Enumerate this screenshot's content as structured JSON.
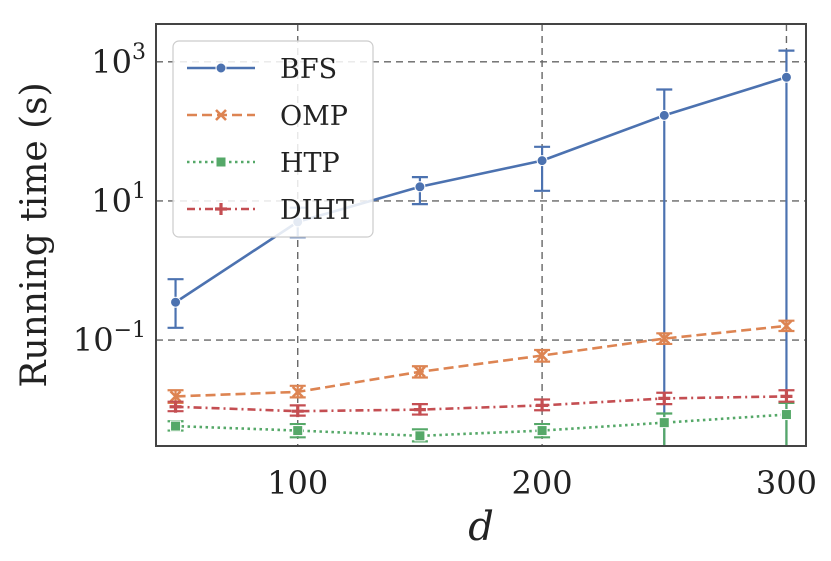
{
  "chart_data": {
    "type": "line",
    "xlabel": "d",
    "ylabel": "Running time (s)",
    "yscale": "log",
    "xlim": [
      42,
      308
    ],
    "ylim": [
      0.003,
      3500
    ],
    "xticks": [
      100,
      200,
      300
    ],
    "xtick_labels": [
      "100",
      "200",
      "300"
    ],
    "yticks": [
      0.1,
      10,
      1000
    ],
    "ytick_labels": [
      {
        "base": "10",
        "exp": "−1"
      },
      {
        "base": "10",
        "exp": "1"
      },
      {
        "base": "10",
        "exp": "3"
      }
    ],
    "grid": true,
    "legend_position": "top-left",
    "x": [
      50,
      100,
      150,
      200,
      250,
      300
    ],
    "series": [
      {
        "name": "BFS",
        "color": "#4C72B0",
        "dash": "solid",
        "marker": "circle",
        "values": [
          0.35,
          5.0,
          16,
          38,
          170,
          600
        ],
        "err_low": [
          0.15,
          3.0,
          9.0,
          14,
          0.0001,
          0.0001
        ],
        "err_high": [
          0.75,
          8.0,
          22,
          60,
          400,
          1450
        ]
      },
      {
        "name": "OMP",
        "color": "#DD8452",
        "dash": "dashed",
        "marker": "x",
        "values": [
          0.0155,
          0.018,
          0.035,
          0.06,
          0.105,
          0.16
        ],
        "err_low": [
          0.0125,
          0.015,
          0.029,
          0.049,
          0.088,
          0.135
        ],
        "err_high": [
          0.019,
          0.022,
          0.042,
          0.072,
          0.125,
          0.19
        ]
      },
      {
        "name": "HTP",
        "color": "#55A868",
        "dash": "dotted",
        "marker": "square",
        "values": [
          0.0058,
          0.005,
          0.0042,
          0.005,
          0.0065,
          0.0085
        ],
        "err_low": [
          0.005,
          0.004,
          0.0035,
          0.004,
          0.0001,
          0.0001
        ],
        "err_high": [
          0.0068,
          0.0062,
          0.0052,
          0.0062,
          0.0088,
          0.0125
        ]
      },
      {
        "name": "DIHT",
        "color": "#C44E52",
        "dash": "dashdot",
        "marker": "plus",
        "values": [
          0.011,
          0.0095,
          0.01,
          0.0115,
          0.0145,
          0.0155
        ],
        "err_low": [
          0.0095,
          0.0082,
          0.0085,
          0.0098,
          0.012,
          0.013
        ],
        "err_high": [
          0.013,
          0.0115,
          0.012,
          0.014,
          0.0175,
          0.019
        ]
      }
    ]
  }
}
